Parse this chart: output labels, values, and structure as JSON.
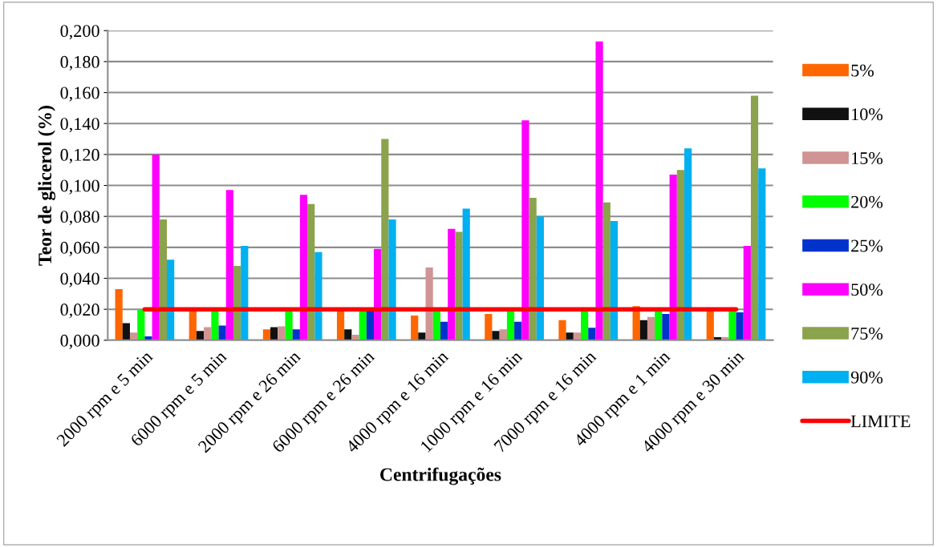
{
  "chart_data": {
    "type": "bar",
    "xlabel": "Centrifugações",
    "ylabel": "Teor de glicerol (%)",
    "categories": [
      "2000 rpm e 5 min",
      "6000 rpm e 5 min",
      "2000 rpm e 26 min",
      "6000 rpm e 26 min",
      "4000 rpm e 16 min",
      "1000 rpm e 16 min",
      "7000 rpm e 16 min",
      "4000 rpm e 1 min",
      "4000 rpm e 30 min"
    ],
    "series": [
      {
        "name": "5%",
        "color": "#ff6600",
        "values": [
          0.033,
          0.019,
          0.007,
          0.019,
          0.016,
          0.017,
          0.013,
          0.022,
          0.019
        ]
      },
      {
        "name": "10%",
        "color": "#111111",
        "values": [
          0.011,
          0.006,
          0.0085,
          0.007,
          0.005,
          0.006,
          0.005,
          0.013,
          0.002
        ]
      },
      {
        "name": "15%",
        "color": "#d09494",
        "values": [
          0.005,
          0.0085,
          0.009,
          0.0035,
          0.047,
          0.007,
          0.005,
          0.015,
          0.002
        ]
      },
      {
        "name": "20%",
        "color": "#00ff00",
        "values": [
          0.02,
          0.019,
          0.019,
          0.019,
          0.019,
          0.019,
          0.019,
          0.019,
          0.019
        ]
      },
      {
        "name": "25%",
        "color": "#0033cc",
        "values": [
          0.0025,
          0.0095,
          0.007,
          0.019,
          0.012,
          0.012,
          0.008,
          0.017,
          0.018
        ]
      },
      {
        "name": "50%",
        "color": "#ff00ff",
        "values": [
          0.12,
          0.097,
          0.094,
          0.059,
          0.072,
          0.142,
          0.193,
          0.107,
          0.061
        ]
      },
      {
        "name": "75%",
        "color": "#8aa34c",
        "values": [
          0.078,
          0.048,
          0.088,
          0.13,
          0.07,
          0.092,
          0.089,
          0.11,
          0.158
        ]
      },
      {
        "name": "90%",
        "color": "#00b0f0",
        "values": [
          0.052,
          0.061,
          0.057,
          0.078,
          0.085,
          0.08,
          0.077,
          0.124,
          0.111
        ]
      },
      {
        "name": "LIMITE",
        "type": "line",
        "color": "#ff0000",
        "values": [
          0.02,
          0.02,
          0.02,
          0.02,
          0.02,
          0.02,
          0.02,
          0.02,
          0.02
        ]
      }
    ],
    "ylim": [
      0,
      0.2
    ],
    "yticks": [
      {
        "value": 0,
        "label": "0,000"
      },
      {
        "value": 0.02,
        "label": "0,020"
      },
      {
        "value": 0.04,
        "label": "0,040"
      },
      {
        "value": 0.06,
        "label": "0,060"
      },
      {
        "value": 0.08,
        "label": "0,080"
      },
      {
        "value": 0.1,
        "label": "0,100"
      },
      {
        "value": 0.12,
        "label": "0,120"
      },
      {
        "value": 0.14,
        "label": "0,140"
      },
      {
        "value": 0.16,
        "label": "0,160"
      },
      {
        "value": 0.18,
        "label": "0,180"
      },
      {
        "value": 0.2,
        "label": "0,200"
      }
    ],
    "grid": "y",
    "legend": "right"
  }
}
